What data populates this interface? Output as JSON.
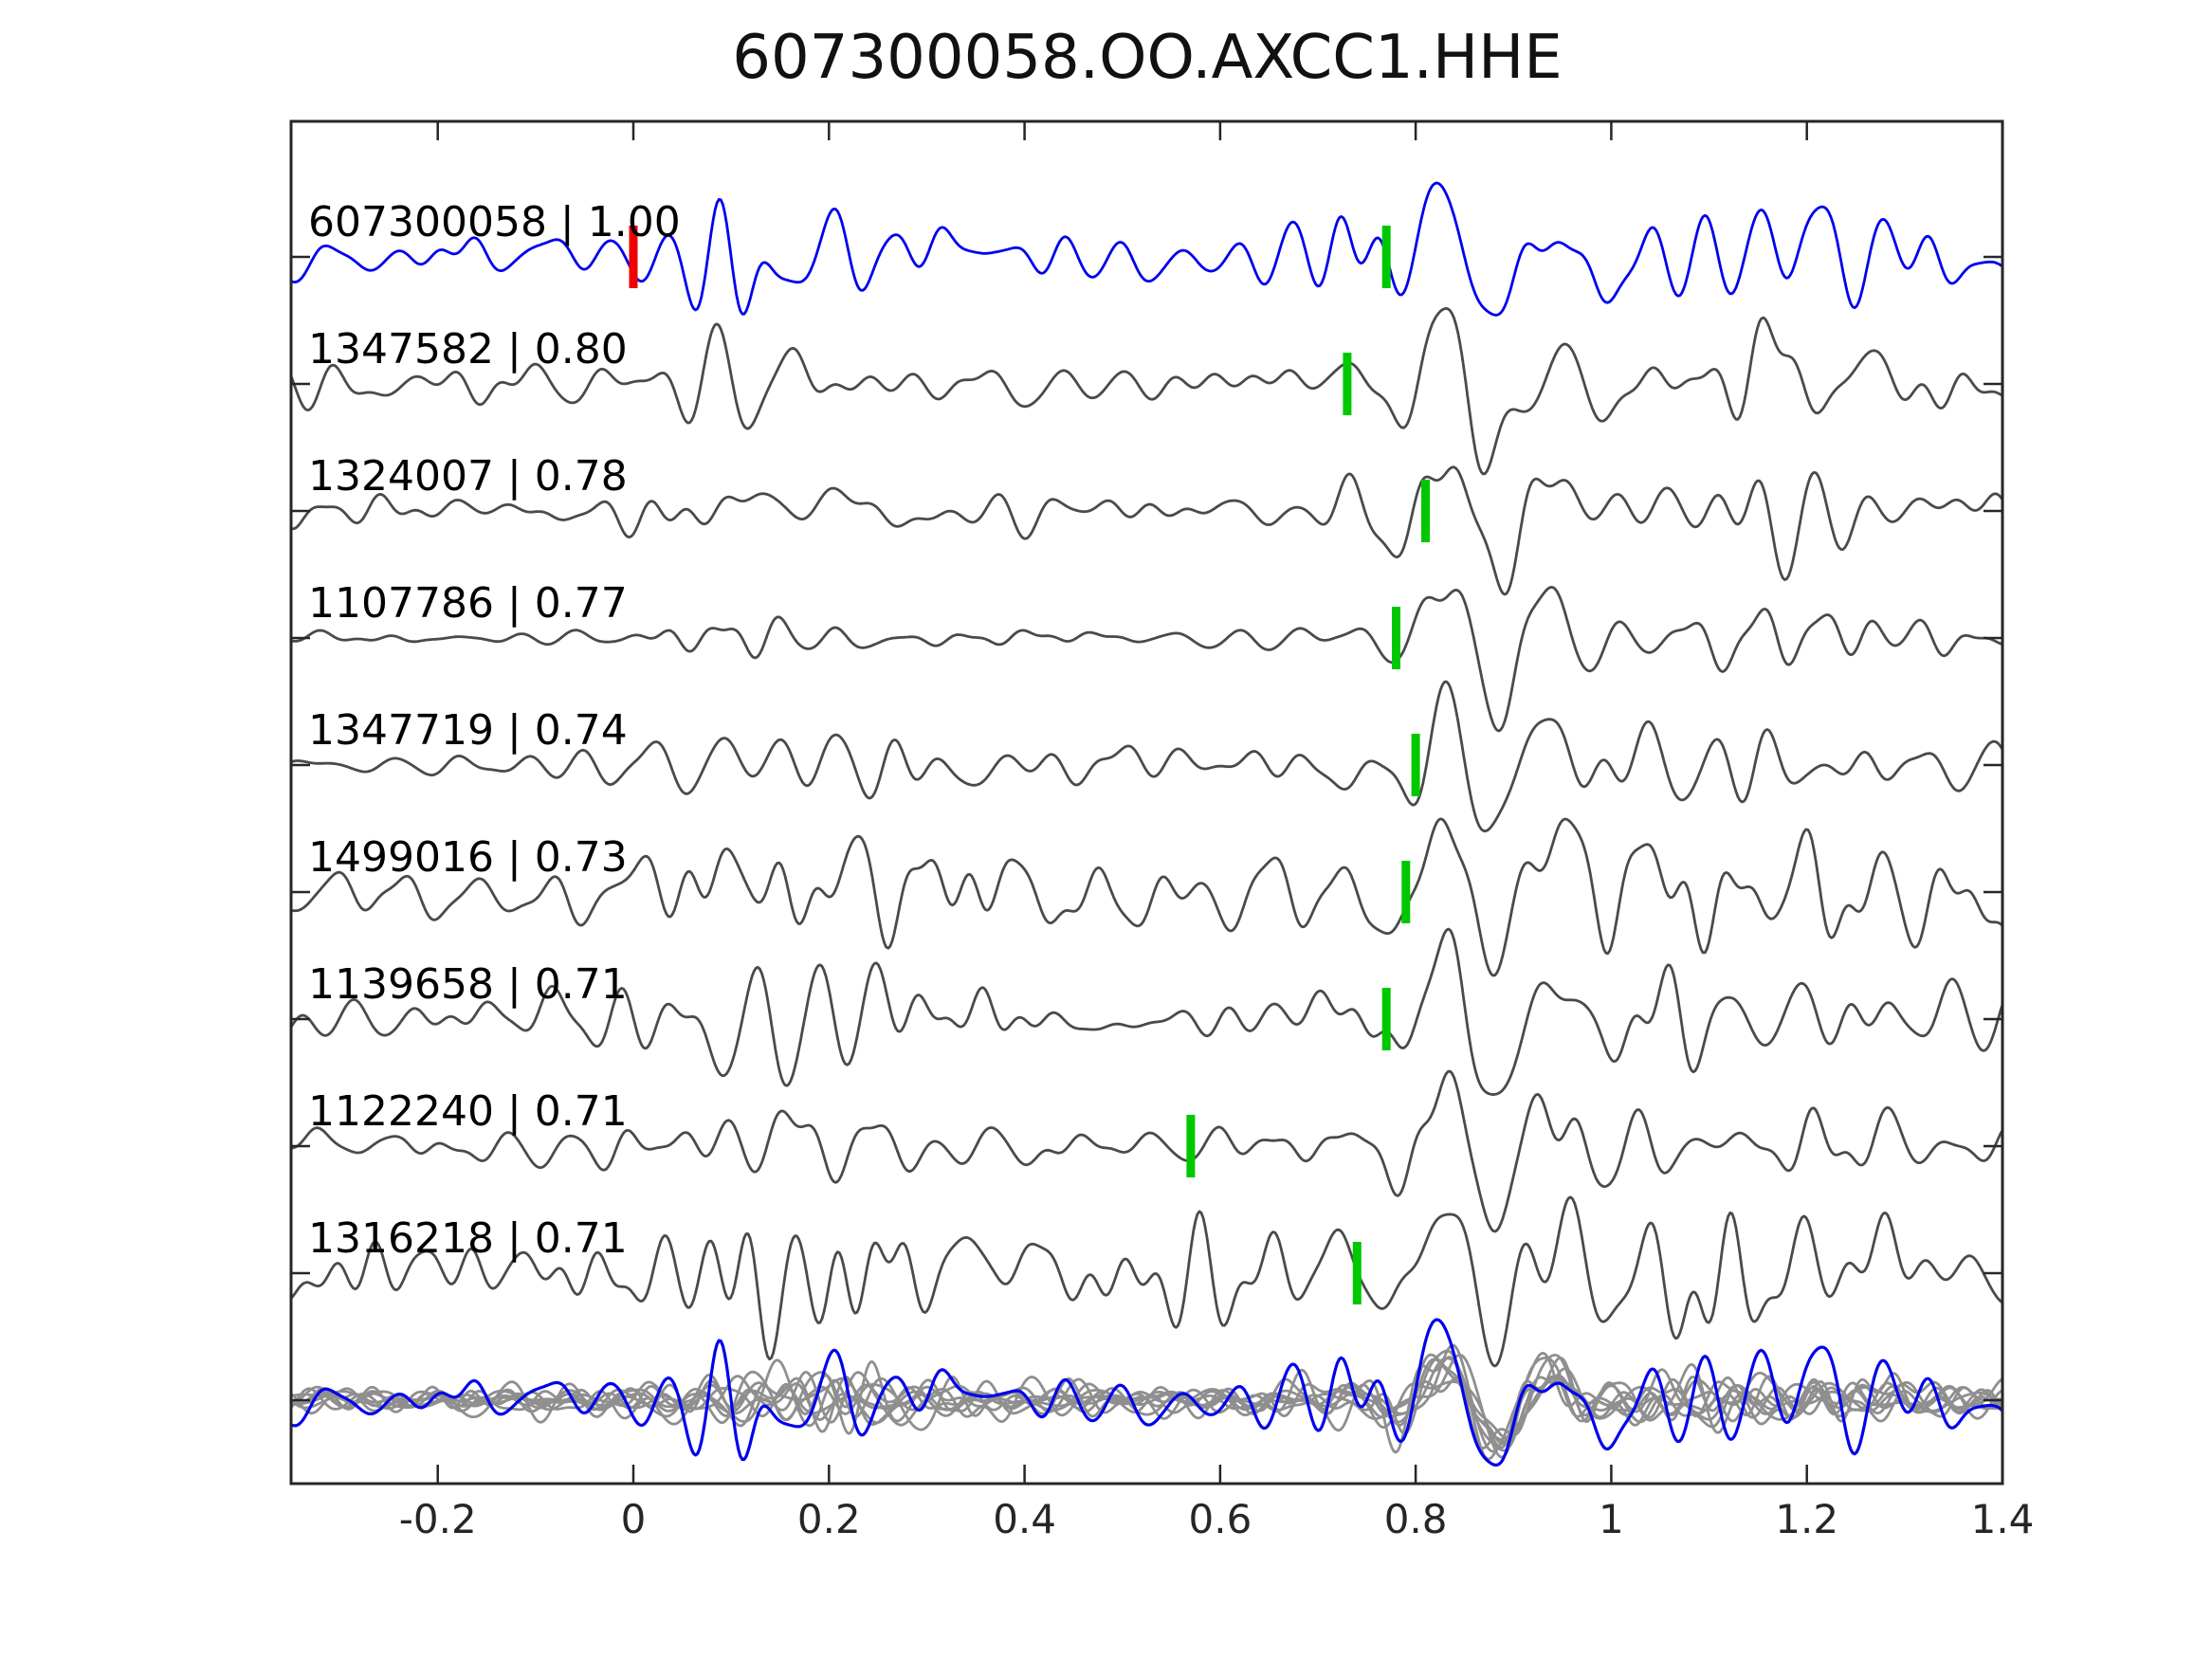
{
  "app": {
    "background": "#ffffff"
  },
  "chart_data": {
    "type": "line",
    "title": "607300058.OO.AXCC1.HHE",
    "xlabel": "",
    "ylabel": "",
    "xlim": [
      -0.35,
      1.4
    ],
    "grid": false,
    "legend": "none",
    "xticks": {
      "values": [
        -0.2,
        0,
        0.2,
        0.4,
        0.6,
        0.8,
        1.0,
        1.2,
        1.4
      ],
      "labels": [
        "-0.2",
        "0",
        "0.2",
        "0.4",
        "0.6",
        "0.8",
        "1",
        "1.2",
        "1.4"
      ]
    },
    "colors": {
      "template_trace": "#0000ee",
      "match_trace": "#4a4a4a",
      "pick_marker": "#00c800",
      "origin_marker": "#ee0000",
      "overlay_gray": "#8f8f8f",
      "axis": "#262626",
      "label_text": "#000000"
    },
    "traces": [
      {
        "id": "607300058",
        "correlation": 1.0,
        "label": "607300058 | 1.00",
        "role": "template",
        "pick_time": 0.77,
        "origin_marker_time": 0.0,
        "synth": {
          "seed": 11,
          "amp": 78,
          "noise": 0.55,
          "burst1": 0.95,
          "burst2": 1.0
        }
      },
      {
        "id": "1347582",
        "correlation": 0.8,
        "label": "1347582 | 0.80",
        "role": "match",
        "pick_time": 0.73,
        "synth": {
          "seed": 22,
          "amp": 95,
          "noise": 0.38,
          "burst1": 0.55,
          "burst2": 1.0
        }
      },
      {
        "id": "1324007",
        "correlation": 0.78,
        "label": "1324007 | 0.78",
        "role": "match",
        "pick_time": 0.81,
        "synth": {
          "seed": 33,
          "amp": 88,
          "noise": 0.32,
          "burst1": 0.5,
          "burst2": 1.0
        }
      },
      {
        "id": "1107786",
        "correlation": 0.77,
        "label": "1107786 | 0.77",
        "role": "match",
        "pick_time": 0.78,
        "synth": {
          "seed": 44,
          "amp": 98,
          "noise": 0.1,
          "burst1": 0.22,
          "burst2": 1.0
        }
      },
      {
        "id": "1347719",
        "correlation": 0.74,
        "label": "1347719 | 0.74",
        "role": "match",
        "pick_time": 0.8,
        "synth": {
          "seed": 55,
          "amp": 88,
          "noise": 0.3,
          "burst1": 0.42,
          "burst2": 1.0
        }
      },
      {
        "id": "1499016",
        "correlation": 0.73,
        "label": "1499016 | 0.73",
        "role": "match",
        "pick_time": 0.79,
        "synth": {
          "seed": 66,
          "amp": 88,
          "noise": 0.4,
          "burst1": 0.6,
          "burst2": 1.0
        }
      },
      {
        "id": "1139658",
        "correlation": 0.71,
        "label": "1139658 | 0.71",
        "role": "match",
        "pick_time": 0.77,
        "synth": {
          "seed": 77,
          "amp": 95,
          "noise": 0.35,
          "burst1": 0.5,
          "burst2": 1.0
        }
      },
      {
        "id": "1122240",
        "correlation": 0.71,
        "label": "1122240 | 0.71",
        "role": "match",
        "pick_time": 0.57,
        "synth": {
          "seed": 88,
          "amp": 90,
          "noise": 0.55,
          "burst1": 0.75,
          "burst2": 1.0
        }
      },
      {
        "id": "1316218",
        "correlation": 0.71,
        "label": "1316218 | 0.71",
        "role": "match",
        "pick_time": 0.74,
        "synth": {
          "seed": 99,
          "amp": 98,
          "noise": 0.6,
          "burst1": 0.85,
          "burst2": 1.0
        }
      }
    ],
    "overlay": {
      "note": "all matched traces superimposed with template",
      "gray_seeds": [
        201,
        202,
        203,
        204,
        205,
        206,
        207,
        208,
        209
      ],
      "gray_amps": [
        50,
        58,
        46,
        62,
        52,
        55,
        48,
        60,
        53
      ],
      "gray_synth": {
        "noise": 0.4,
        "burst1": 0.55,
        "burst2": 1.0
      },
      "template_synth": {
        "seed": 11,
        "amp": 85,
        "noise": 0.5,
        "burst1": 0.9,
        "burst2": 1.0
      }
    }
  }
}
